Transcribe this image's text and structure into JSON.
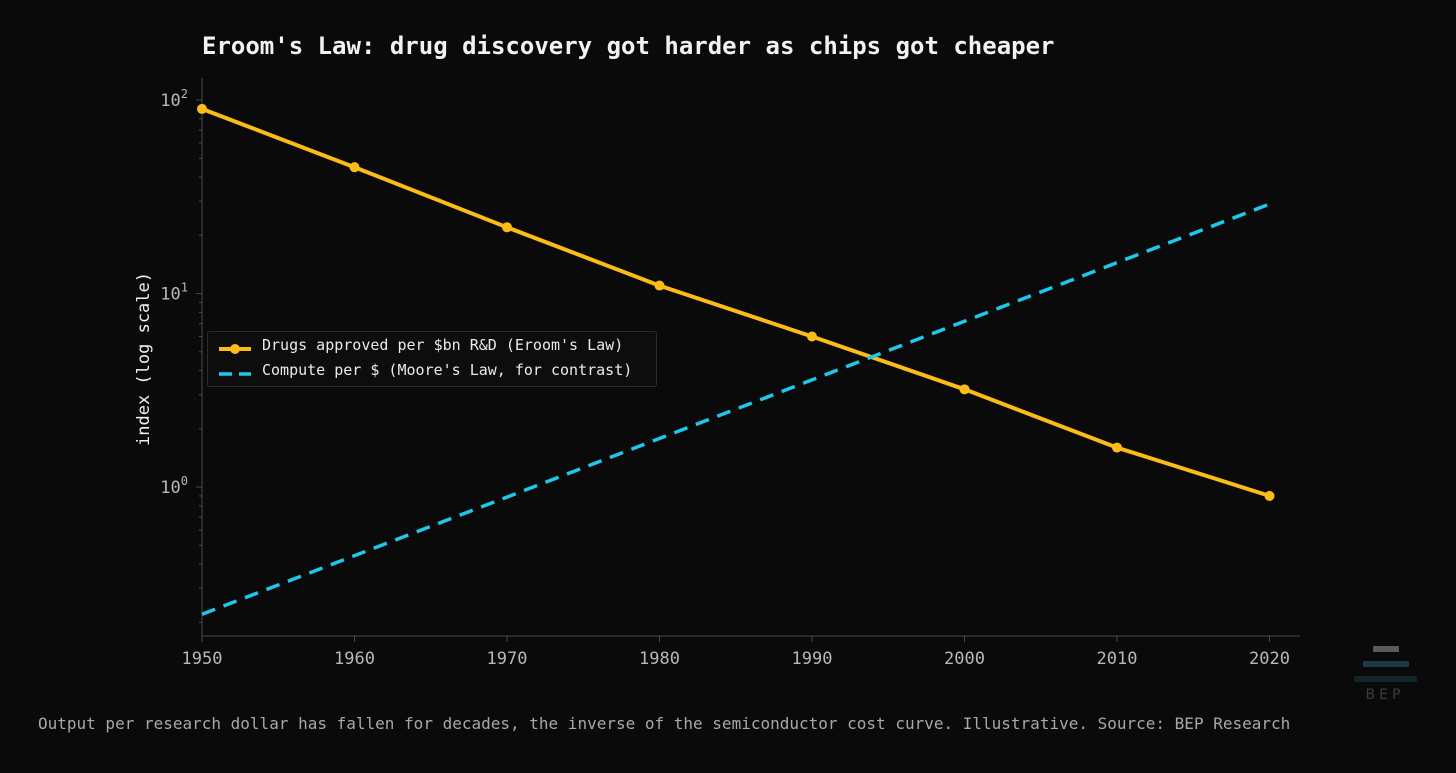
{
  "chart_data": {
    "type": "line",
    "title": "Eroom's Law: drug discovery got harder as chips got cheaper",
    "xlabel": "",
    "ylabel": "index (log scale)",
    "yscale": "log",
    "xlim": [
      1950,
      2022
    ],
    "ylim": [
      0.17,
      130
    ],
    "x_ticks": [
      1950,
      1960,
      1970,
      1980,
      1990,
      2000,
      2010,
      2020
    ],
    "y_ticks": [
      {
        "value": 1,
        "base": "10",
        "exp": "0"
      },
      {
        "value": 10,
        "base": "10",
        "exp": "1"
      },
      {
        "value": 100,
        "base": "10",
        "exp": "2"
      }
    ],
    "grid": false,
    "legend_position": "center-left",
    "series": [
      {
        "name": "Drugs approved per $bn R&D (Eroom's Law)",
        "color": "#fbbc18",
        "style": "solid-markers",
        "x": [
          1950,
          1960,
          1970,
          1980,
          1990,
          2000,
          2010,
          2020
        ],
        "values": [
          90,
          45,
          22,
          11,
          6,
          3.2,
          1.6,
          0.9
        ]
      },
      {
        "name": "Compute per $ (Moore's Law, for contrast)",
        "color": "#1ec8ea",
        "style": "dashed",
        "x": [
          1950,
          2020
        ],
        "values": [
          0.22,
          29
        ]
      }
    ]
  },
  "caption": "Output per research dollar has fallen for decades, the inverse of the semiconductor cost curve. Illustrative.  Source: BEP Research",
  "logo": {
    "text": "BEP"
  }
}
